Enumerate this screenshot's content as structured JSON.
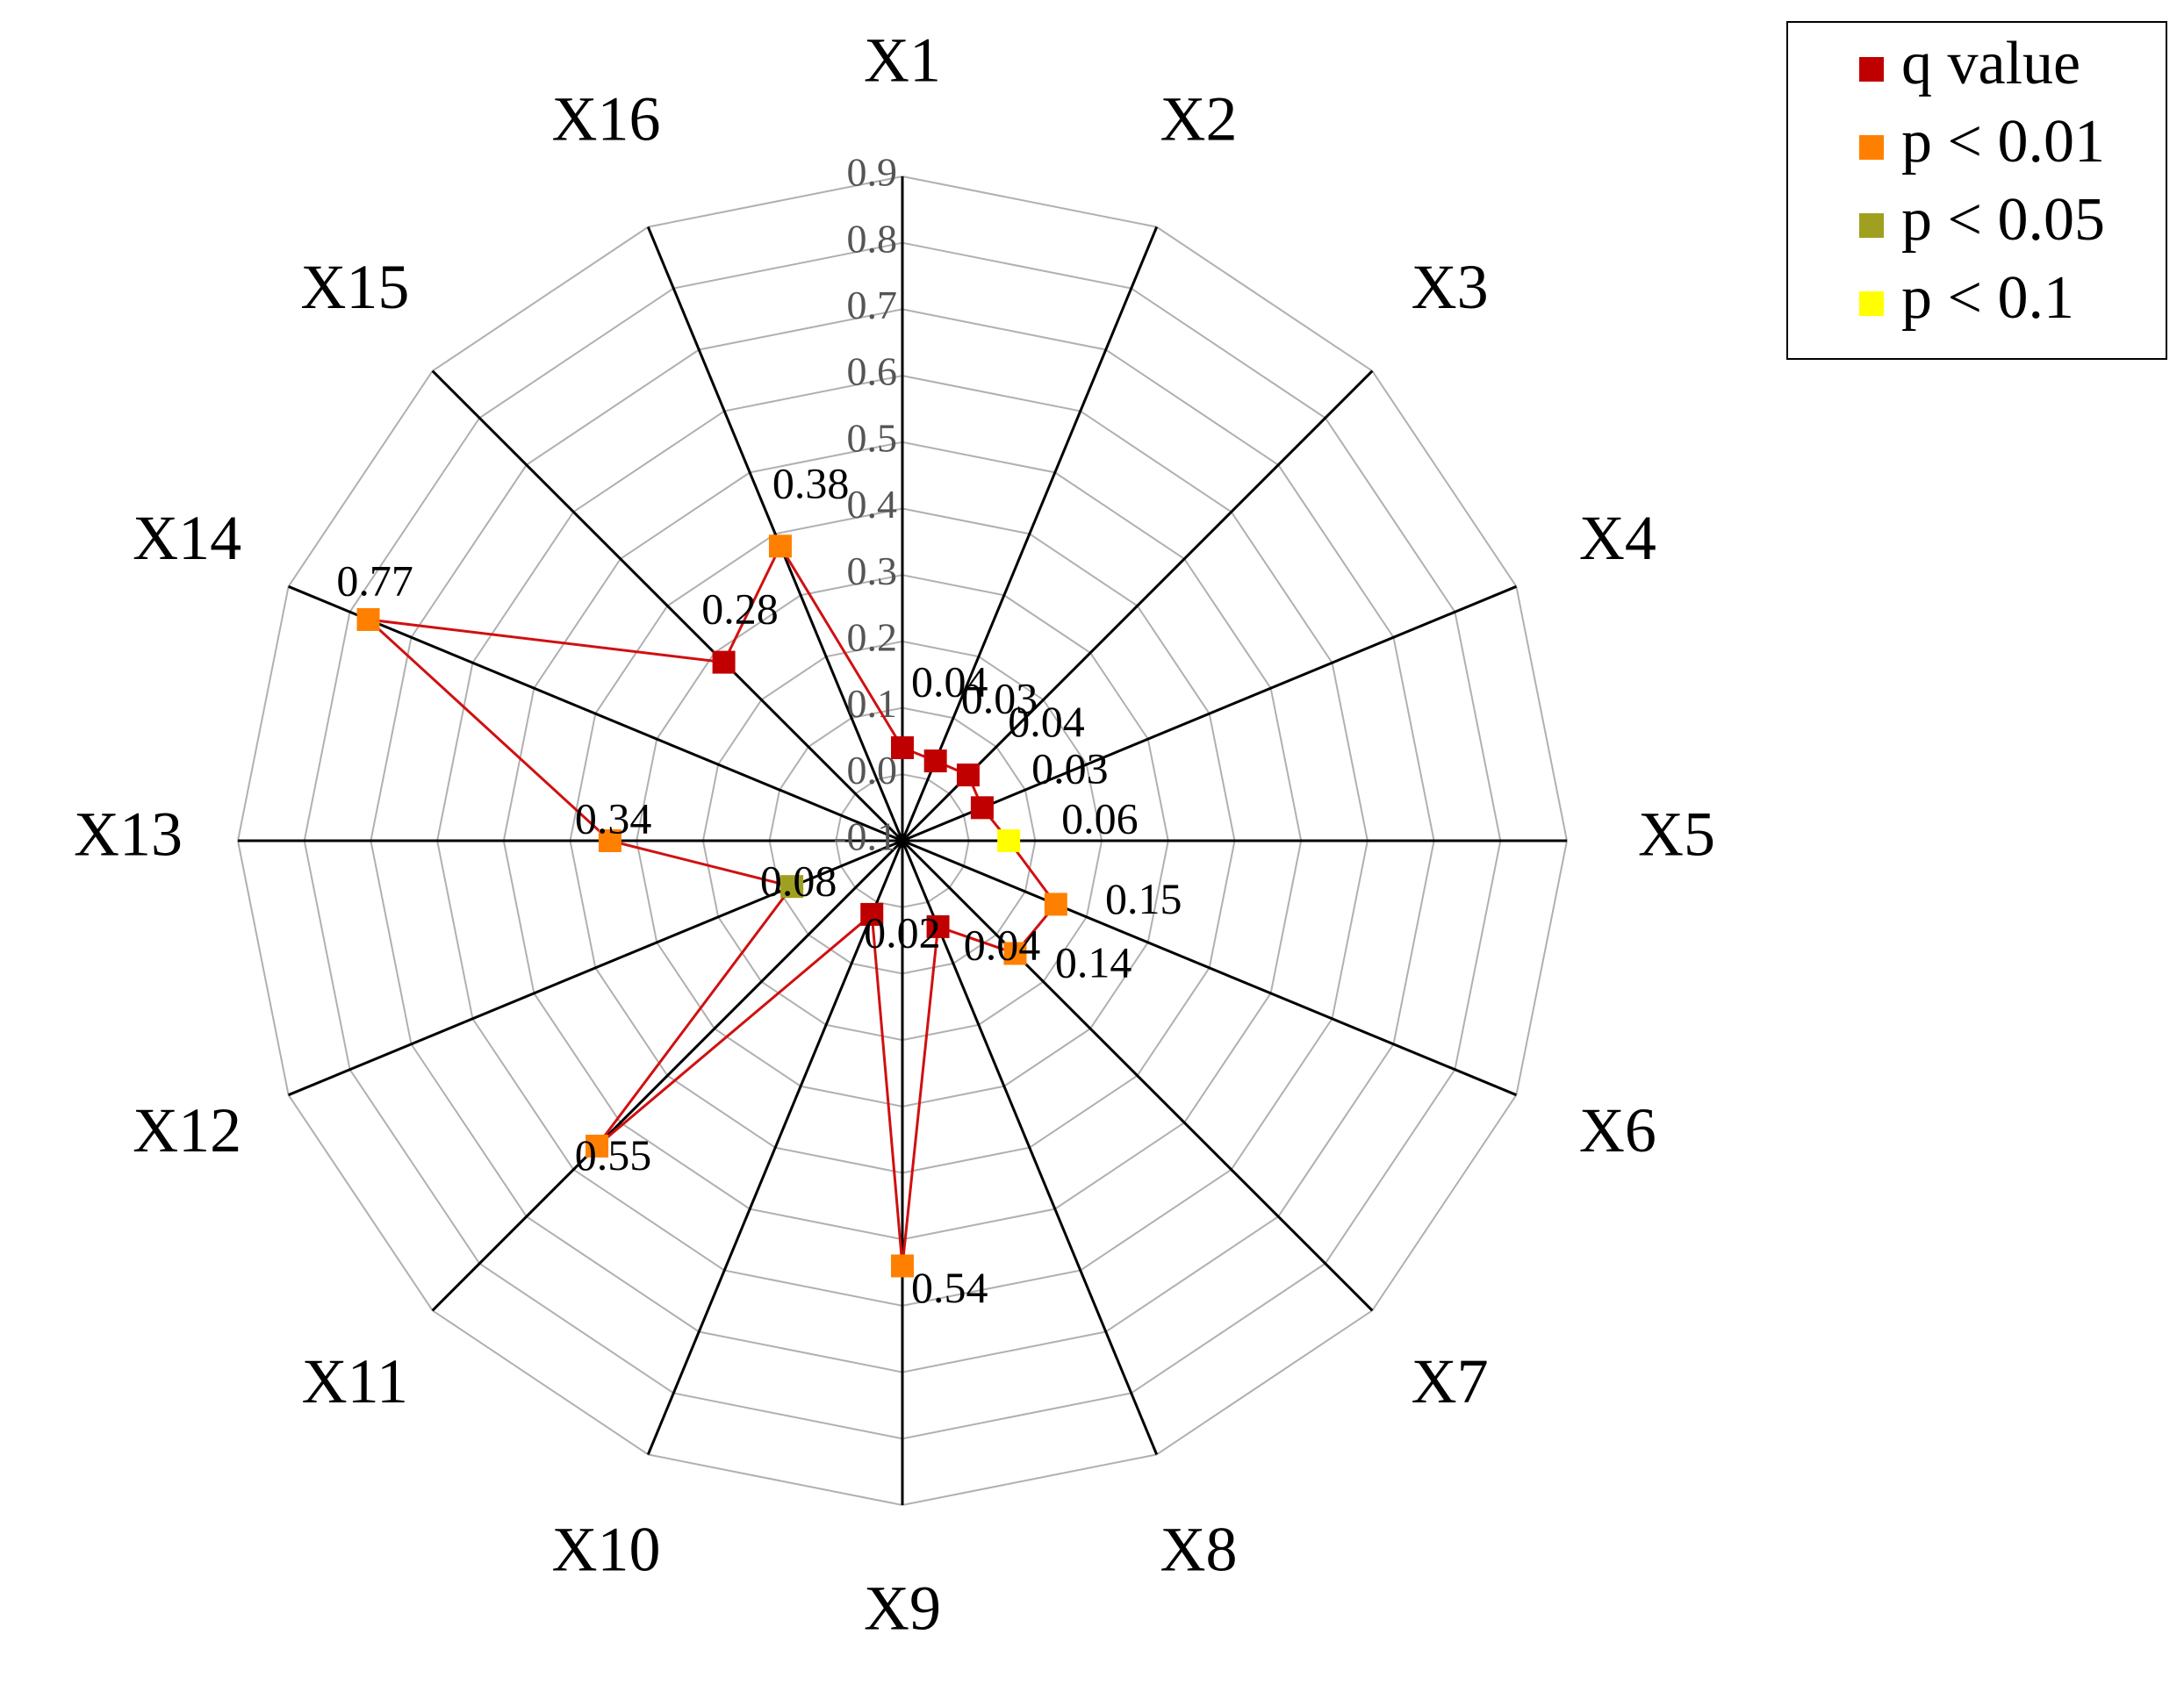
{
  "chart_data": {
    "type": "radar",
    "categories": [
      "X1",
      "X2",
      "X3",
      "X4",
      "X5",
      "X6",
      "X7",
      "X8",
      "X9",
      "X10",
      "X11",
      "X12",
      "X13",
      "X14",
      "X15",
      "X16"
    ],
    "series": [
      {
        "name": "q value",
        "color": "#d01010",
        "values": [
          0.04,
          0.03,
          0.04,
          0.03,
          0.06,
          0.15,
          0.14,
          0.04,
          0.54,
          0.02,
          0.55,
          0.08,
          0.34,
          0.77,
          0.28,
          0.38
        ],
        "marker_colors": [
          "#c00000",
          "#c00000",
          "#c00000",
          "#c00000",
          "#ffff00",
          "#ff8000",
          "#ff8000",
          "#c00000",
          "#ff8000",
          "#c00000",
          "#ff8000",
          "#a0a020",
          "#ff8000",
          "#ff8000",
          "#c00000",
          "#ff8000"
        ]
      }
    ],
    "legend": [
      {
        "label": "q value",
        "color": "#c00000"
      },
      {
        "label": "p < 0.01",
        "color": "#ff8000"
      },
      {
        "label": "p < 0.05",
        "color": "#a0a020"
      },
      {
        "label": "p < 0.1",
        "color": "#ffff00"
      }
    ],
    "ylim": [
      -0.1,
      0.9
    ],
    "yticks": [
      -0.1,
      {
        "value": 0,
        "label": "0.0"
      },
      0.1,
      0.2,
      0.3,
      0.4,
      0.5,
      0.6,
      0.7,
      0.8,
      0.9
    ],
    "grid": true
  }
}
